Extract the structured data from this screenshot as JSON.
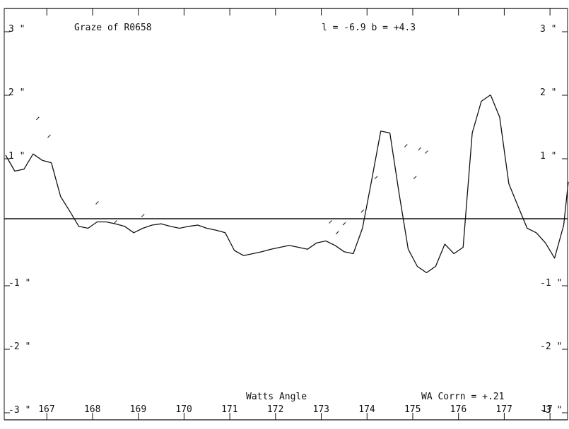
{
  "chart_data": {
    "type": "line",
    "title": "Graze of R0658",
    "galactic_coords": "l = -6.9  b = +4.3",
    "xlabel": "Watts Angle",
    "correction": "WA Corrn = +.21",
    "ylabel": "",
    "xlim": [
      166.1,
      178.4
    ],
    "ylim": [
      -3,
      3
    ],
    "y_unit": "\"",
    "x_ticks": [
      "167",
      "168",
      "169",
      "170",
      "171",
      "172",
      "173",
      "174",
      "175",
      "176",
      "177",
      "17"
    ],
    "x_tick_values": [
      167,
      168,
      169,
      170,
      171,
      172,
      173,
      174,
      175,
      176,
      177,
      178
    ],
    "y_ticks_left": [
      "3 \"",
      "2 \"",
      "1 \"",
      "-1 \"",
      "-2 \"",
      "-3 \""
    ],
    "y_ticks_right": [
      "3 \"",
      "2 \"",
      "1 \"",
      "-1 \"",
      "-2 \"",
      "-3 \""
    ],
    "y_tick_values": [
      3,
      2,
      1,
      -1,
      -2,
      -3
    ],
    "zero_line": true,
    "series": [
      {
        "type": "line",
        "x": [
          166.1,
          166.3,
          166.5,
          166.7,
          166.9,
          167.1,
          167.3,
          167.5,
          167.7,
          167.9,
          168.1,
          168.3,
          168.5,
          168.7,
          168.9,
          169.1,
          169.3,
          169.5,
          169.7,
          169.9,
          170.1,
          170.3,
          170.5,
          170.7,
          170.9,
          171.1,
          171.3,
          171.5,
          171.7,
          171.9,
          172.1,
          172.3,
          172.5,
          172.7,
          172.9,
          173.1,
          173.3,
          173.5,
          173.7,
          173.9,
          174.1,
          174.3,
          174.5,
          174.7,
          174.9,
          175.1,
          175.3,
          175.5,
          175.7,
          175.9,
          176.1,
          176.3,
          176.5,
          176.7,
          176.9,
          177.1,
          177.3,
          177.5,
          177.7,
          177.9,
          178.1,
          178.3,
          178.4
        ],
        "y": [
          1.0,
          0.75,
          0.78,
          1.02,
          0.92,
          0.88,
          0.35,
          0.12,
          -0.12,
          -0.15,
          -0.05,
          -0.05,
          -0.08,
          -0.12,
          -0.22,
          -0.15,
          -0.1,
          -0.08,
          -0.12,
          -0.15,
          -0.12,
          -0.1,
          -0.15,
          -0.18,
          -0.22,
          -0.5,
          -0.58,
          -0.55,
          -0.52,
          -0.48,
          -0.45,
          -0.42,
          -0.45,
          -0.48,
          -0.38,
          -0.35,
          -0.42,
          -0.52,
          -0.55,
          -0.15,
          0.6,
          1.38,
          1.35,
          0.4,
          -0.48,
          -0.75,
          -0.85,
          -0.75,
          -0.4,
          -0.55,
          -0.45,
          1.35,
          1.85,
          1.95,
          1.6,
          0.55,
          0.2,
          -0.15,
          -0.22,
          -0.38,
          -0.62,
          -0.1,
          0.58
        ]
      },
      {
        "type": "scatter",
        "x": [
          166.8,
          167.05,
          168.1,
          168.5,
          169.1,
          173.2,
          173.35,
          173.5,
          173.9,
          174.2,
          174.85,
          175.05,
          175.15,
          175.3
        ],
        "y": [
          1.58,
          1.3,
          0.25,
          -0.05,
          0.05,
          -0.05,
          -0.22,
          -0.08,
          0.12,
          0.65,
          1.15,
          0.65,
          1.1,
          1.05
        ]
      }
    ]
  }
}
